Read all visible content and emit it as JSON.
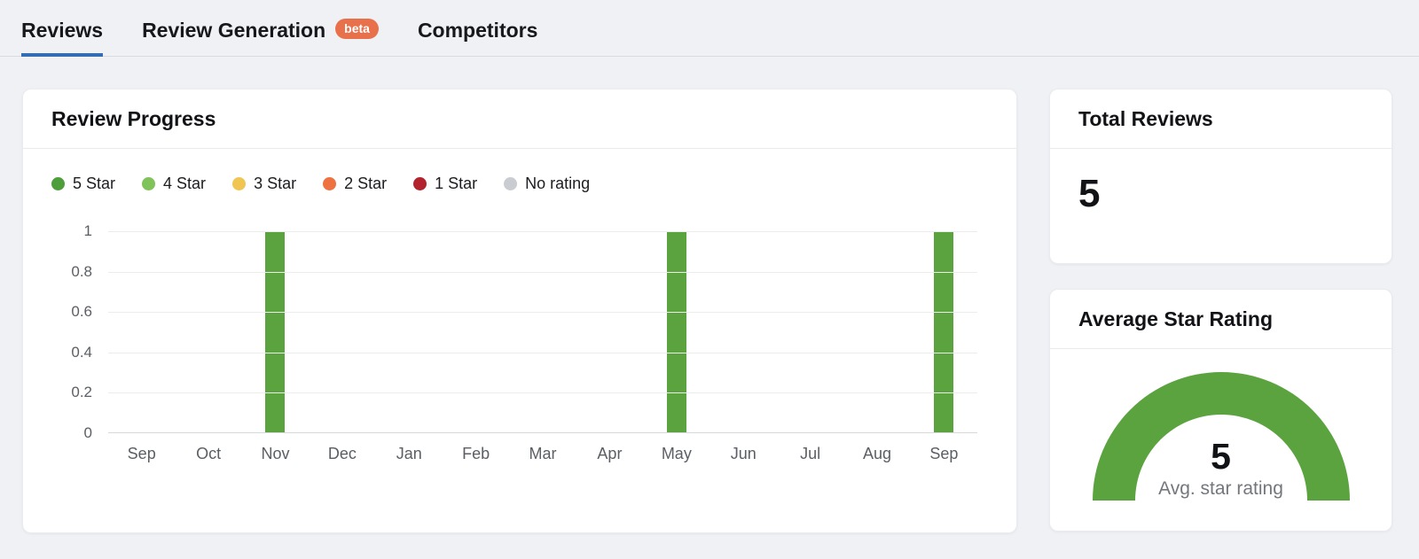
{
  "colors": {
    "accent_blue": "#336db4",
    "badge_orange": "#e8714c",
    "gauge_green": "#5ba33f",
    "page_bg": "#eff1f5"
  },
  "tabs": {
    "items": [
      {
        "label": "Reviews",
        "active": true
      },
      {
        "label": "Review Generation",
        "badge": "beta",
        "active": false
      },
      {
        "label": "Competitors",
        "active": false
      }
    ]
  },
  "review_progress": {
    "title": "Review Progress",
    "legend": [
      {
        "label": "5 Star",
        "color": "#4f9e3c"
      },
      {
        "label": "4 Star",
        "color": "#7fc35a"
      },
      {
        "label": "3 Star",
        "color": "#f0c551"
      },
      {
        "label": "2 Star",
        "color": "#ee7140"
      },
      {
        "label": "1 Star",
        "color": "#b2232e"
      },
      {
        "label": "No rating",
        "color": "#c9cdd2"
      }
    ]
  },
  "chart_data": [
    {
      "type": "bar",
      "title": "Review Progress",
      "categories": [
        "Sep",
        "Oct",
        "Nov",
        "Dec",
        "Jan",
        "Feb",
        "Mar",
        "Apr",
        "May",
        "Jun",
        "Jul",
        "Aug",
        "Sep"
      ],
      "series": [
        {
          "name": "5 Star",
          "color": "#5ba33f",
          "values": [
            0,
            0,
            1,
            0,
            0,
            0,
            0,
            0,
            1,
            0,
            0,
            0,
            1
          ]
        },
        {
          "name": "4 Star",
          "color": "#7fc35a",
          "values": [
            0,
            0,
            0,
            0,
            0,
            0,
            0,
            0,
            0,
            0,
            0,
            0,
            0
          ]
        },
        {
          "name": "3 Star",
          "color": "#f0c551",
          "values": [
            0,
            0,
            0,
            0,
            0,
            0,
            0,
            0,
            0,
            0,
            0,
            0,
            0
          ]
        },
        {
          "name": "2 Star",
          "color": "#ee7140",
          "values": [
            0,
            0,
            0,
            0,
            0,
            0,
            0,
            0,
            0,
            0,
            0,
            0,
            0
          ]
        },
        {
          "name": "1 Star",
          "color": "#b2232e",
          "values": [
            0,
            0,
            0,
            0,
            0,
            0,
            0,
            0,
            0,
            0,
            0,
            0,
            0
          ]
        },
        {
          "name": "No rating",
          "color": "#c9cdd2",
          "values": [
            0,
            0,
            0,
            0,
            0,
            0,
            0,
            0,
            0,
            0,
            0,
            0,
            0
          ]
        }
      ],
      "xlabel": "",
      "ylabel": "",
      "ylim": [
        0,
        1
      ],
      "yticks": [
        0,
        0.2,
        0.4,
        0.6,
        0.8,
        1
      ],
      "grid": true,
      "legend_position": "top"
    },
    {
      "type": "gauge",
      "title": "Average Star Rating",
      "value": 5,
      "max": 5,
      "label": "Avg. star rating",
      "color": "#5ba33f"
    }
  ],
  "total_reviews": {
    "title": "Total Reviews",
    "value": "5"
  },
  "average_star_rating": {
    "title": "Average Star Rating",
    "value": "5",
    "caption": "Avg. star rating"
  }
}
